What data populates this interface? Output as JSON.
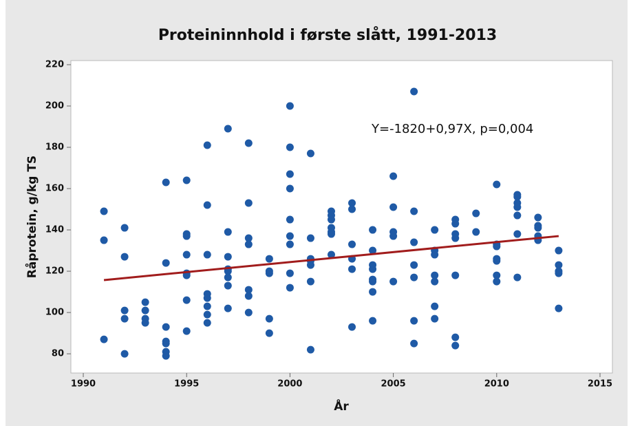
{
  "chart_data": {
    "type": "scatter",
    "title": "Proteininnhold i første slått, 1991-2013",
    "x_label": "År",
    "y_label": "Råprotein, g/kg TS",
    "annotation": "Y=-1820+0,97X, p=0,004",
    "xlim": [
      1989.4,
      2015.6
    ],
    "ylim": [
      70.7,
      222
    ],
    "xticks": [
      1990,
      1995,
      2000,
      2005,
      2010,
      2015
    ],
    "yticks": [
      80,
      100,
      120,
      140,
      160,
      180,
      200,
      220
    ],
    "points": {
      "color": "#1f5aa6",
      "x": [
        1991,
        1991,
        1991,
        1992,
        1992,
        1992,
        1992,
        1992,
        1993,
        1993,
        1993,
        1993,
        1994,
        1994,
        1994,
        1994,
        1994,
        1994,
        1994,
        1995,
        1995,
        1995,
        1995,
        1995,
        1995,
        1995,
        1995,
        1996,
        1996,
        1996,
        1996,
        1996,
        1996,
        1996,
        1996,
        1997,
        1997,
        1997,
        1997,
        1997,
        1997,
        1997,
        1997,
        1998,
        1998,
        1998,
        1998,
        1998,
        1998,
        1998,
        1999,
        1999,
        1999,
        1999,
        1999,
        2000,
        2000,
        2000,
        2000,
        2000,
        2000,
        2000,
        2000,
        2000,
        2001,
        2001,
        2001,
        2001,
        2001,
        2001,
        2001,
        2002,
        2002,
        2002,
        2002,
        2002,
        2002,
        2002,
        2003,
        2003,
        2003,
        2003,
        2003,
        2003,
        2004,
        2004,
        2004,
        2004,
        2004,
        2004,
        2004,
        2004,
        2005,
        2005,
        2005,
        2005,
        2005,
        2006,
        2006,
        2006,
        2006,
        2006,
        2006,
        2006,
        2007,
        2007,
        2007,
        2007,
        2007,
        2007,
        2007,
        2008,
        2008,
        2008,
        2008,
        2008,
        2008,
        2008,
        2009,
        2009,
        2010,
        2010,
        2010,
        2010,
        2010,
        2010,
        2010,
        2011,
        2011,
        2011,
        2011,
        2011,
        2011,
        2011,
        2012,
        2012,
        2012,
        2012,
        2012,
        2013,
        2013,
        2013,
        2013,
        2013
      ],
      "values": [
        149,
        135,
        87,
        141,
        127,
        101,
        97,
        80,
        105,
        101,
        97,
        95,
        163,
        124,
        93,
        86,
        85,
        81,
        79,
        164,
        138,
        137,
        128,
        119,
        118,
        106,
        91,
        181,
        152,
        128,
        109,
        107,
        103,
        99,
        95,
        189,
        139,
        127,
        121,
        120,
        117,
        113,
        102,
        182,
        153,
        136,
        133,
        111,
        108,
        100,
        126,
        120,
        119,
        97,
        90,
        200,
        180,
        167,
        160,
        145,
        137,
        133,
        119,
        112,
        177,
        136,
        126,
        125,
        123,
        115,
        82,
        149,
        147,
        145,
        141,
        139,
        138,
        128,
        153,
        150,
        133,
        126,
        121,
        93,
        140,
        130,
        123,
        121,
        116,
        115,
        110,
        96,
        166,
        151,
        139,
        137,
        115,
        207,
        149,
        134,
        123,
        117,
        96,
        85,
        140,
        130,
        128,
        118,
        115,
        103,
        97,
        145,
        143,
        138,
        136,
        118,
        88,
        84,
        148,
        139,
        162,
        133,
        132,
        126,
        125,
        118,
        115,
        157,
        156,
        153,
        151,
        147,
        138,
        117,
        146,
        142,
        141,
        137,
        135,
        130,
        123,
        120,
        119,
        102
      ]
    },
    "fit_line": {
      "color": "#a11c1c",
      "x": [
        1991,
        2013
      ],
      "values": [
        115.7,
        137
      ]
    }
  }
}
